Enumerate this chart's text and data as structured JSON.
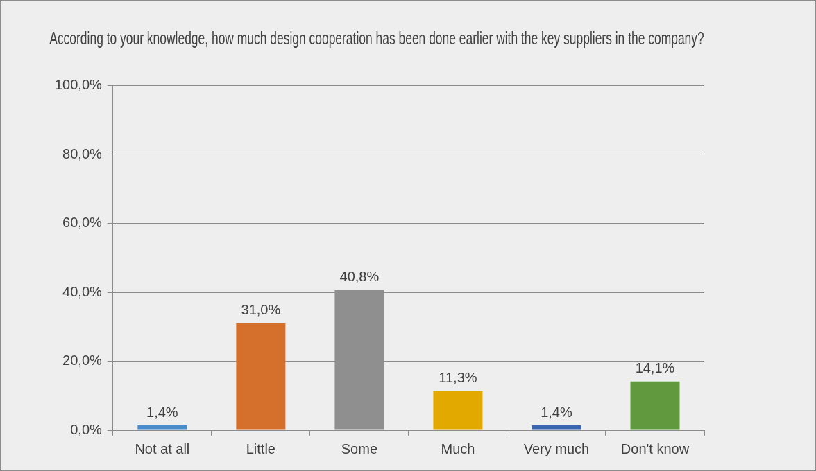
{
  "chart_data": {
    "type": "bar",
    "title": "According to your knowledge, how much design cooperation has been done earlier with the key suppliers in the company?",
    "categories": [
      "Not at all",
      "Little",
      "Some",
      "Much",
      "Very much",
      "Don't know"
    ],
    "values": [
      1.4,
      31.0,
      40.8,
      11.3,
      1.4,
      14.1
    ],
    "colors": [
      "#4a8ccb",
      "#d4702c",
      "#8f8f8f",
      "#e2a900",
      "#3b64b1",
      "#619a3e"
    ],
    "value_labels": [
      "1,4%",
      "31,0%",
      "40,8%",
      "11,3%",
      "1,4%",
      "14,1%"
    ],
    "ylim": [
      0,
      100
    ],
    "yticks": [
      {
        "value": 0,
        "label": "0,0%"
      },
      {
        "value": 20,
        "label": "20,0%"
      },
      {
        "value": 40,
        "label": "40,0%"
      },
      {
        "value": 60,
        "label": "60,0%"
      },
      {
        "value": 80,
        "label": "80,0%"
      },
      {
        "value": 100,
        "label": "100,0%"
      }
    ],
    "grid": "y",
    "legend": false
  }
}
